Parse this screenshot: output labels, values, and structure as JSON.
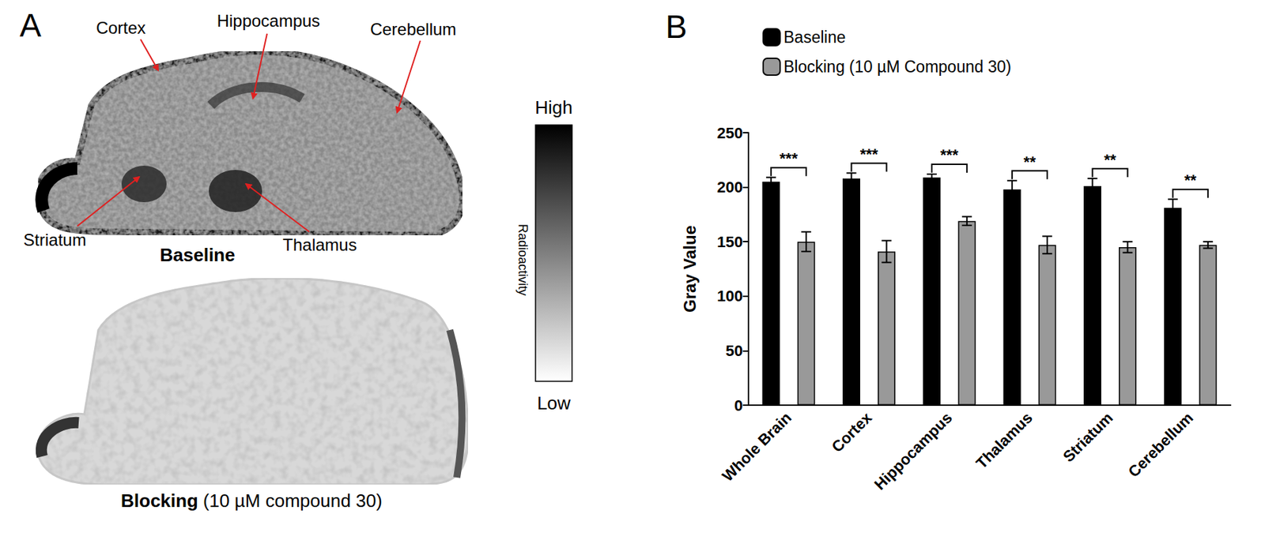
{
  "image_panel": {
    "letter": "A",
    "regions": [
      "Cortex",
      "Hippocampus",
      "Cerebellum",
      "Striatum",
      "Thalamus"
    ],
    "baseline_label": "Baseline",
    "blocking_label": "Blocking",
    "blocking_detail": "(10 µM compound 30)",
    "colorbar": {
      "high": "High",
      "low": "Low",
      "title": "Radioactivity"
    }
  },
  "chart_data": {
    "type": "bar",
    "title": "B",
    "y_label": "Gray Value",
    "categories": [
      "Whole Brain",
      "Cortex",
      "Hippocampus",
      "Thalamus",
      "Striatum",
      "Cerebellum"
    ],
    "series": [
      {
        "name": "Baseline",
        "color": "#000000",
        "values": [
          205,
          208,
          209,
          198,
          201,
          181
        ],
        "errors": [
          4,
          5,
          3,
          8,
          7,
          8
        ]
      },
      {
        "name": "Blocking (10 µM Compound 30)",
        "color": "#999999",
        "values": [
          150,
          141,
          169,
          147,
          145,
          147
        ],
        "errors": [
          9,
          10,
          4,
          8,
          5,
          3
        ]
      }
    ],
    "significance": [
      "***",
      "***",
      "***",
      "**",
      "**",
      "**"
    ],
    "ylim": [
      0,
      250
    ],
    "yticks": [
      0,
      50,
      100,
      150,
      200,
      250
    ],
    "grid": false,
    "legend": "top"
  }
}
